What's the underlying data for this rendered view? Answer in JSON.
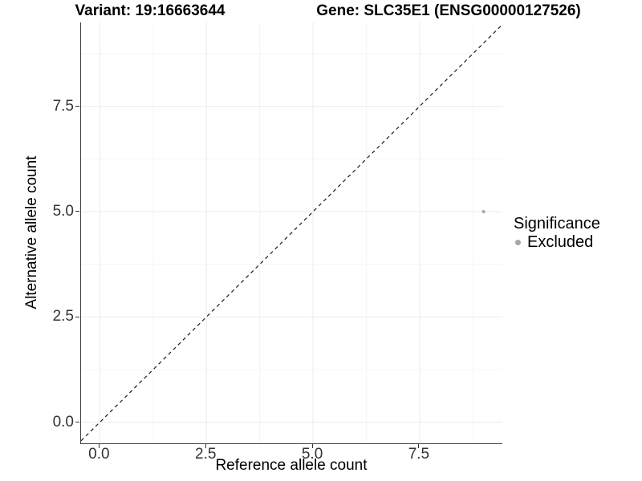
{
  "titles": {
    "variant": "Variant: 19:16663644",
    "gene": "Gene: SLC35E1 (ENSG00000127526)"
  },
  "axes": {
    "x": {
      "label": "Reference allele count",
      "ticks": [
        "0.0",
        "2.5",
        "5.0",
        "7.5"
      ]
    },
    "y": {
      "label": "Alternative allele count",
      "ticks": [
        "0.0",
        "2.5",
        "5.0",
        "7.5"
      ]
    }
  },
  "legend": {
    "title": "Significance",
    "items": [
      {
        "label": "Excluded",
        "color": "#a6a6a6"
      }
    ]
  },
  "colors": {
    "grid_major": "#ebebeb",
    "grid_minor": "#f5f5f5",
    "axis_line": "#404040",
    "tick": "#333333",
    "dashed_line": "#1a1a1a",
    "point": "#a6a6a6"
  },
  "chart_data": {
    "type": "scatter",
    "title": "Variant: 19:16663644 | Gene: SLC35E1 (ENSG00000127526)",
    "xlabel": "Reference allele count",
    "ylabel": "Alternative allele count",
    "series": [
      {
        "name": "Excluded",
        "color": "#a6a6a6",
        "points": [
          {
            "x": 9,
            "y": 5
          }
        ]
      }
    ],
    "reference_line": {
      "type": "identity",
      "slope": 1,
      "intercept": 0,
      "style": "dashed"
    },
    "xlim": [
      -0.44,
      9.44
    ],
    "ylim": [
      -0.5,
      9.49
    ],
    "x_ticks": [
      0.0,
      2.5,
      5.0,
      7.5
    ],
    "y_ticks": [
      0.0,
      2.5,
      5.0,
      7.5
    ],
    "x_minor_ticks": [
      1.25,
      3.75,
      6.25,
      8.75
    ],
    "y_minor_ticks": [
      1.25,
      3.75,
      6.25,
      8.75
    ],
    "grid": true,
    "legend_position": "right"
  }
}
